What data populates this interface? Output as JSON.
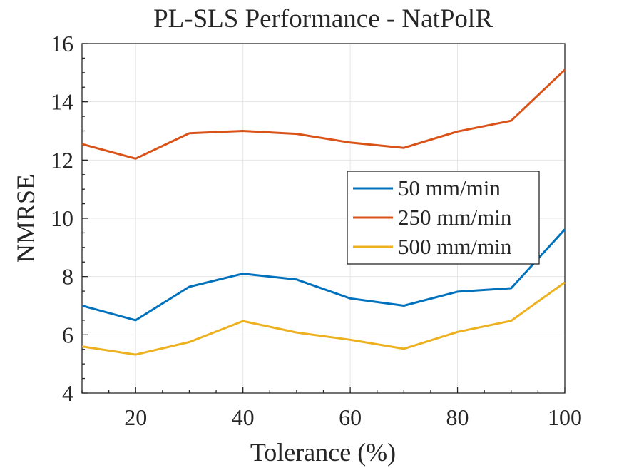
{
  "chart_data": {
    "type": "line",
    "title": "PL-SLS Performance - NatPolR",
    "xlabel": "Tolerance (%)",
    "ylabel": "NMRSE",
    "xlim": [
      10,
      100
    ],
    "ylim": [
      4,
      16
    ],
    "x_ticks": [
      20,
      40,
      60,
      80,
      100
    ],
    "y_ticks": [
      4,
      6,
      8,
      10,
      12,
      14,
      16
    ],
    "x_tick_labels": [
      "20",
      "40",
      "60",
      "80",
      "100"
    ],
    "y_tick_labels": [
      "4",
      "6",
      "8",
      "10",
      "12",
      "14",
      "16"
    ],
    "grid": true,
    "legend_position": "right",
    "x": [
      10,
      20,
      30,
      40,
      50,
      60,
      70,
      80,
      90,
      100
    ],
    "series": [
      {
        "name": "50 mm/min",
        "color": "#0072bd",
        "values": [
          7.0,
          6.5,
          7.65,
          8.1,
          7.9,
          7.25,
          7.0,
          7.48,
          7.6,
          9.62
        ]
      },
      {
        "name": "250 mm/min",
        "color": "#d95319",
        "values": [
          12.55,
          12.05,
          12.92,
          13.0,
          12.9,
          12.6,
          12.42,
          12.98,
          13.35,
          15.1
        ]
      },
      {
        "name": "500 mm/min",
        "color": "#edb120",
        "values": [
          5.6,
          5.32,
          5.75,
          6.47,
          6.08,
          5.83,
          5.52,
          6.1,
          6.48,
          7.8
        ]
      }
    ]
  }
}
